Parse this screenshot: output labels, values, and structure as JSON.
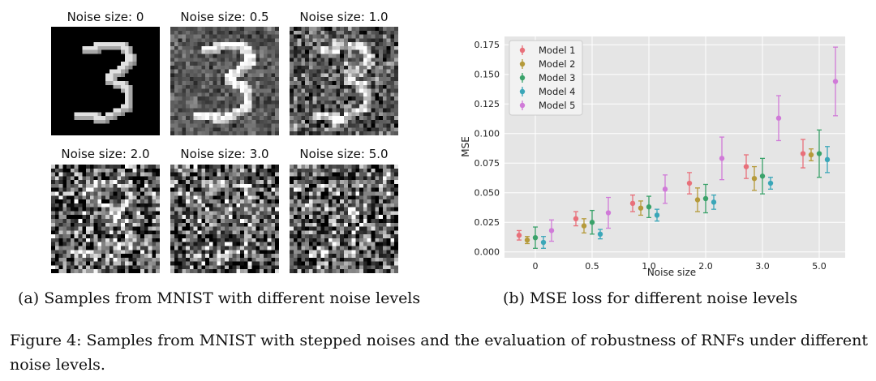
{
  "figure_a": {
    "panels": [
      {
        "title": "Noise size: 0",
        "noise": 0
      },
      {
        "title": "Noise size: 0.5",
        "noise": 0.5
      },
      {
        "title": "Noise size: 1.0",
        "noise": 1.0
      },
      {
        "title": "Noise size: 2.0",
        "noise": 2.0
      },
      {
        "title": "Noise size: 3.0",
        "noise": 3.0
      },
      {
        "title": "Noise size: 5.0",
        "noise": 5.0
      }
    ],
    "caption": "(a) Samples from MNIST with different noise levels"
  },
  "figure_b": {
    "caption": "(b) MSE loss for different noise levels"
  },
  "figure_caption": "Figure 4: Samples from MNIST with stepped noises and the evaluation of robustness of RNFs under different noise levels.",
  "chart_data": {
    "type": "scatter",
    "title": "",
    "xlabel": "Noise size",
    "ylabel": "MSE",
    "categories": [
      "0",
      "0.5",
      "1.0",
      "2.0",
      "3.0",
      "5.0"
    ],
    "ylim": [
      -0.005,
      0.182
    ],
    "yticks": [
      "0.000",
      "0.025",
      "0.050",
      "0.075",
      "0.100",
      "0.125",
      "0.150",
      "0.175"
    ],
    "ytick_values": [
      0,
      0.025,
      0.05,
      0.075,
      0.1,
      0.125,
      0.15,
      0.175
    ],
    "grid": true,
    "legend_position": "top-left",
    "series": [
      {
        "name": "Model 1",
        "color": "#e8707a",
        "values": [
          0.014,
          0.028,
          0.041,
          0.058,
          0.072,
          0.083
        ],
        "errors": [
          0.004,
          0.006,
          0.007,
          0.009,
          0.01,
          0.012
        ]
      },
      {
        "name": "Model 2",
        "color": "#b59a3a",
        "values": [
          0.01,
          0.022,
          0.037,
          0.044,
          0.062,
          0.082
        ],
        "errors": [
          0.003,
          0.006,
          0.006,
          0.01,
          0.01,
          0.005
        ]
      },
      {
        "name": "Model 3",
        "color": "#3aa26a",
        "values": [
          0.012,
          0.025,
          0.038,
          0.045,
          0.064,
          0.083
        ],
        "errors": [
          0.009,
          0.01,
          0.009,
          0.012,
          0.015,
          0.02
        ]
      },
      {
        "name": "Model 4",
        "color": "#3aa6b8",
        "values": [
          0.008,
          0.015,
          0.031,
          0.042,
          0.058,
          0.078
        ],
        "errors": [
          0.005,
          0.004,
          0.005,
          0.006,
          0.005,
          0.011
        ]
      },
      {
        "name": "Model 5",
        "color": "#d07ad8",
        "values": [
          0.018,
          0.033,
          0.053,
          0.079,
          0.113,
          0.144
        ],
        "errors": [
          0.009,
          0.013,
          0.012,
          0.018,
          0.019,
          0.029
        ]
      }
    ]
  }
}
